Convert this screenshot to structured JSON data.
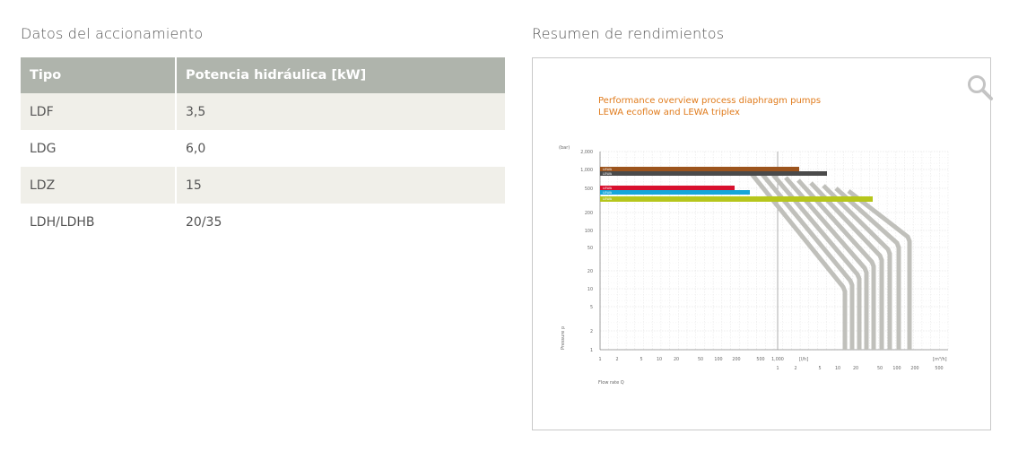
{
  "left": {
    "title": "Datos del accionamiento",
    "table": {
      "headers": [
        "Tipo",
        "Potencia hidráulica [kW]"
      ],
      "rows": [
        [
          "LDF",
          "3,5"
        ],
        [
          "LDG",
          "6,0"
        ],
        [
          "LDZ",
          "15"
        ],
        [
          "LDH/LDHB",
          "20/35"
        ]
      ]
    }
  },
  "right": {
    "title": "Resumen de rendimientos",
    "zoom_icon": "magnifier-icon"
  },
  "chart_data": {
    "type": "line",
    "title": "Performance overview process diaphragm pumps",
    "subtitle": "LEWA ecoflow and LEWA triplex",
    "title_color": "#e07b1c",
    "ylabel": "Pressure p",
    "xlabel": "Flow rate Q",
    "y_unit": "(bar)",
    "y_scale": "log",
    "y_ticks": [
      "2,000",
      "1,000",
      "500",
      "200",
      "100",
      "50",
      "20",
      "10",
      "5",
      "2",
      "1"
    ],
    "x_ticks_lh": [
      "1",
      "2",
      "5",
      "10",
      "20",
      "50",
      "100",
      "200",
      "500",
      "1,000"
    ],
    "x_unit_lh": "[l/h]",
    "x_ticks_m3h": [
      "1",
      "2",
      "5",
      "10",
      "20",
      "50",
      "100",
      "200",
      "500"
    ],
    "x_unit_m3h": "[m³/h]",
    "grid": true,
    "bands": [
      {
        "label": "LEWA",
        "color": "#9c541d"
      },
      {
        "label": "LEWA",
        "color": "#4a4a4a"
      },
      {
        "label": "LEWA",
        "color": "#d8102e"
      },
      {
        "label": "LEWA",
        "color": "#16a6d9"
      },
      {
        "label": "LEWA",
        "color": "#b6c61c"
      }
    ],
    "curve_color": "#c0c0bb"
  }
}
